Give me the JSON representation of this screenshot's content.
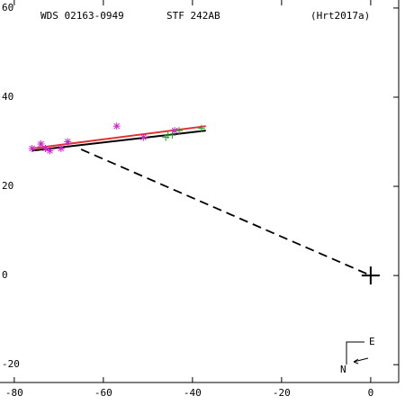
{
  "chart_data": {
    "type": "scatter",
    "title": "WDS 02163-0949",
    "subtitle": "STF 242AB",
    "reference": "(Hrt2017a)",
    "compass": {
      "east": "E",
      "north": "N"
    },
    "xlim": [
      -83.2,
      7.7
    ],
    "ylim": [
      -24,
      61.8
    ],
    "xticks": [
      -80,
      -60,
      -40,
      -20,
      0
    ],
    "yticks": [
      -20,
      0,
      20,
      40,
      60
    ],
    "series": [
      {
        "type": "line",
        "color": "#e03030",
        "x": [
          -76,
          -37
        ],
        "values": [
          28.5,
          33.5
        ]
      },
      {
        "type": "line",
        "color": "#000000",
        "x": [
          -76,
          -37
        ],
        "values": [
          28,
          32.5
        ]
      },
      {
        "type": "dashed",
        "color": "#000000",
        "x": [
          -65,
          0
        ],
        "values": [
          28.3,
          0
        ]
      },
      {
        "type": "asterisk",
        "color": "#d020d0",
        "x": [
          -76,
          -74,
          -73,
          -72,
          -69.5,
          -68,
          -57,
          -51,
          -44
        ],
        "values": [
          28.5,
          29.5,
          28.5,
          28,
          28.5,
          30,
          33.5,
          31,
          32.5
        ]
      },
      {
        "type": "plus",
        "color": "#20a020",
        "x": [
          -46,
          -45.5,
          -44.5,
          -43,
          -38
        ],
        "values": [
          31,
          31.5,
          31.5,
          32.5,
          33
        ]
      },
      {
        "type": "bigplus",
        "color": "#000000",
        "x": [
          0
        ],
        "values": [
          0
        ]
      }
    ]
  }
}
